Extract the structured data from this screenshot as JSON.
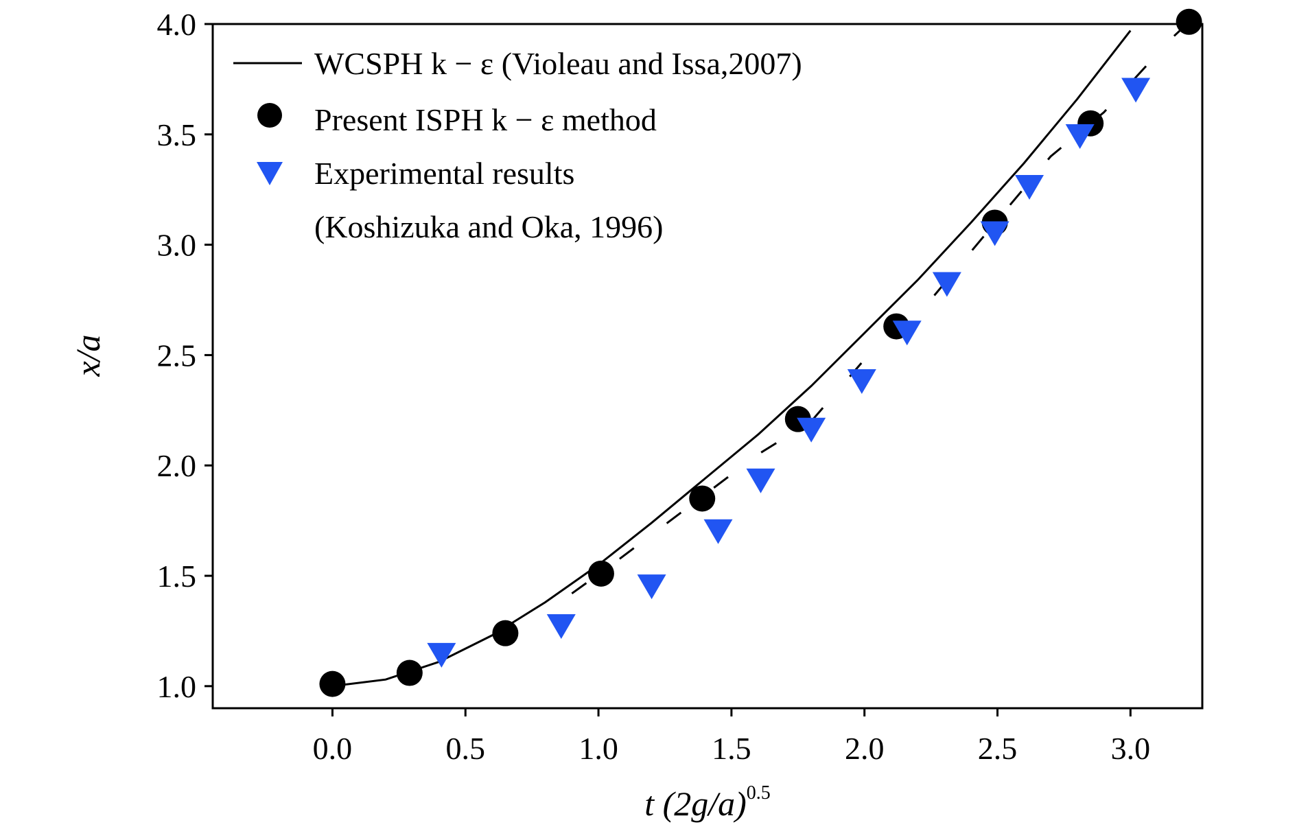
{
  "chart_data": {
    "type": "scatter",
    "xlabel": "t (2g/a)0.5",
    "ylabel": "x/a",
    "xlim": [
      -0.45,
      3.27
    ],
    "ylim": [
      0.9,
      4.0
    ],
    "x_ticks": [
      "0.0",
      "0.5",
      "1.0",
      "1.5",
      "2.0",
      "2.5",
      "3.0"
    ],
    "y_ticks": [
      "1.0",
      "1.5",
      "2.0",
      "2.5",
      "3.0",
      "3.5",
      "4.0"
    ],
    "grid": false,
    "legend_position": "top-left",
    "series": [
      {
        "name": "WCSPH k − ε (Violeau and Issa,2007)",
        "kind": "line",
        "color": "#000000",
        "x": [
          0.0,
          0.2,
          0.4,
          0.6,
          0.8,
          1.0,
          1.2,
          1.4,
          1.6,
          1.8,
          2.0,
          2.2,
          2.4,
          2.6,
          2.8,
          3.0
        ],
        "y": [
          1.0,
          1.03,
          1.11,
          1.23,
          1.38,
          1.55,
          1.74,
          1.94,
          2.14,
          2.36,
          2.6,
          2.84,
          3.1,
          3.37,
          3.66,
          3.97
        ]
      },
      {
        "name": "Present ISPH k − ε method",
        "kind": "markers",
        "marker": "circle",
        "color": "#000000",
        "x": [
          0.0,
          0.29,
          0.65,
          1.01,
          1.39,
          1.75,
          2.12,
          2.49,
          2.85,
          3.22
        ],
        "y": [
          1.01,
          1.06,
          1.24,
          1.51,
          1.85,
          2.21,
          2.63,
          3.1,
          3.55,
          4.01
        ]
      },
      {
        "name": "Experimental results",
        "name_line2": "(Koshizuka and Oka, 1996)",
        "kind": "markers",
        "marker": "triangle-down",
        "color": "#2155f2",
        "x": [
          0.41,
          0.86,
          1.2,
          1.45,
          1.61,
          1.8,
          1.99,
          2.16,
          2.31,
          2.49,
          2.62,
          2.81,
          3.02
        ],
        "y": [
          1.14,
          1.27,
          1.45,
          1.7,
          1.93,
          2.16,
          2.38,
          2.6,
          2.82,
          3.05,
          3.26,
          3.49,
          3.7
        ]
      },
      {
        "kind": "dashed-line",
        "color": "#000000",
        "x": [
          0.9,
          1.05,
          1.6,
          1.8,
          2.05,
          2.2,
          2.7,
          2.9,
          3.15,
          3.23
        ],
        "y": [
          1.42,
          1.55,
          2.05,
          2.2,
          2.55,
          2.68,
          3.4,
          3.6,
          3.93,
          4.02
        ]
      }
    ]
  },
  "axes": {
    "xlabel_main": "t (2g/a)",
    "xlabel_sup": "0.5",
    "ylabel": "x/a"
  },
  "legend": {
    "entry1": "WCSPH k − ε (Violeau and Issa,2007)",
    "entry2": "Present ISPH k − ε method",
    "entry3_line1": "Experimental results",
    "entry3_line2": "(Koshizuka and Oka, 1996)"
  }
}
